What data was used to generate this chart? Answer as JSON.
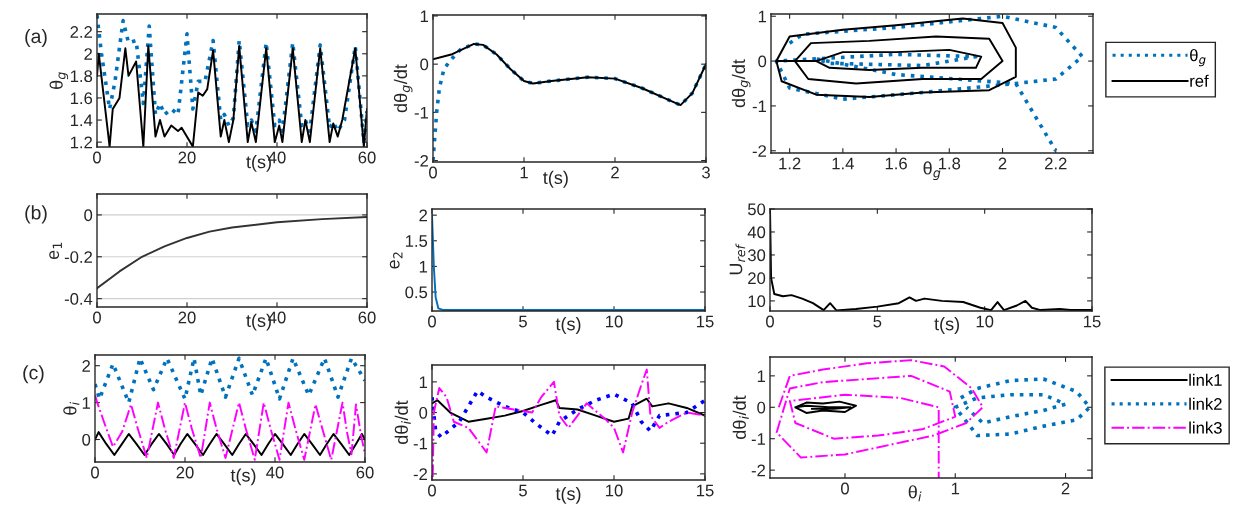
{
  "chart_data": [
    {
      "type": "line",
      "xlabel": "t(s)",
      "ylabel": "θ$_{g}$",
      "annotations": [
        "(a)"
      ],
      "xlim": [
        0,
        60
      ],
      "ylim": [
        1.156,
        2.36
      ],
      "xticks": [
        0,
        20,
        40,
        60
      ],
      "yticks": [
        1.2,
        1.4,
        1.6,
        1.8,
        2,
        2.2
      ],
      "grid": false,
      "legend": false,
      "series": [
        {
          "color": "#0072bd",
          "line_style": "dotted",
          "x": [
            0,
            1,
            2.8,
            4,
            5.8,
            7,
            8.7,
            10.3,
            11.6,
            13,
            14,
            15,
            16.5,
            18,
            20,
            21.3,
            22.5,
            24,
            25.8,
            27.5,
            28.3,
            29.3,
            30.3,
            31.6,
            33.5,
            34.3,
            35.3,
            37.6,
            39.5,
            40.5,
            41.2,
            43.5,
            45.5,
            46.3,
            47.3,
            49.6,
            51.7,
            52.5,
            53.5,
            55,
            57.4,
            59.3,
            60
          ],
          "values": [
            2.35,
            2.0,
            1.5,
            1.75,
            2.3,
            2.1,
            2.12,
            1.55,
            2.25,
            1.45,
            1.55,
            1.45,
            1.5,
            1.45,
            2.18,
            1.5,
            1.75,
            1.75,
            2.12,
            1.4,
            1.45,
            1.35,
            1.42,
            2.12,
            1.35,
            1.4,
            1.3,
            2.1,
            1.35,
            1.4,
            1.3,
            2.1,
            1.35,
            1.4,
            1.3,
            2.08,
            1.33,
            1.38,
            1.3,
            1.4,
            2.07,
            1.2,
            1.48
          ]
        },
        {
          "color": "#000000",
          "line_style": "solid",
          "x": [
            0,
            0.4,
            2.8,
            3.5,
            5,
            6.3,
            7,
            8.7,
            10.3,
            11.4,
            13,
            14,
            15,
            16.5,
            18,
            18.8,
            21.3,
            22.5,
            23.5,
            24.5,
            25.8,
            27.5,
            28.3,
            29.3,
            30.3,
            31.6,
            33.5,
            34.3,
            35.3,
            37.6,
            39.5,
            40.5,
            41.2,
            43.5,
            45.5,
            46.3,
            47.3,
            49.6,
            51.7,
            52.5,
            53.5,
            54.5,
            57.4,
            59.3,
            60
          ],
          "values": [
            1.8,
            2.0,
            1.16,
            1.5,
            1.6,
            2.05,
            1.8,
            1.93,
            1.16,
            2.07,
            1.25,
            1.4,
            1.25,
            1.35,
            1.3,
            1.33,
            1.16,
            1.65,
            1.62,
            1.68,
            2.03,
            1.25,
            1.4,
            1.2,
            1.4,
            2.07,
            1.2,
            1.38,
            1.2,
            2.05,
            1.2,
            1.35,
            1.2,
            2.05,
            1.2,
            1.4,
            1.2,
            2.05,
            1.2,
            1.37,
            1.25,
            1.4,
            2.05,
            1.16,
            1.5
          ]
        }
      ]
    },
    {
      "type": "line",
      "xlabel": "t(s)",
      "ylabel": "dθ$_{g}$/dt",
      "xlim": [
        0,
        3
      ],
      "ylim": [
        -2.03,
        1.02
      ],
      "xticks": [
        0,
        1,
        2,
        3
      ],
      "yticks": [
        -2,
        -1,
        0,
        1
      ],
      "grid": false,
      "legend": false,
      "series": [
        {
          "color": "#0072bd",
          "line_style": "dotted",
          "x": [
            0,
            0.02,
            0.04,
            0.07,
            0.12,
            0.2,
            0.3,
            0.45,
            0.55,
            0.7,
            0.85,
            1.0,
            1.1,
            1.3,
            1.7,
            2.0,
            2.3,
            2.6,
            2.72,
            2.85,
            3.0
          ],
          "values": [
            -2.0,
            -1.5,
            -1.0,
            -0.5,
            -0.1,
            0.1,
            0.3,
            0.42,
            0.4,
            0.2,
            -0.1,
            -0.35,
            -0.4,
            -0.35,
            -0.27,
            -0.3,
            -0.5,
            -0.75,
            -0.85,
            -0.6,
            0.0
          ]
        },
        {
          "color": "#000000",
          "line_style": "solid",
          "x": [
            0,
            0.2,
            0.45,
            0.55,
            0.7,
            0.85,
            1.0,
            1.1,
            1.3,
            1.7,
            2.0,
            2.3,
            2.6,
            2.72,
            2.85,
            3.0
          ],
          "values": [
            0.1,
            0.2,
            0.42,
            0.4,
            0.2,
            -0.1,
            -0.35,
            -0.4,
            -0.35,
            -0.27,
            -0.3,
            -0.5,
            -0.75,
            -0.85,
            -0.6,
            0.0
          ]
        }
      ]
    },
    {
      "type": "line",
      "xlabel": "θ$_{g}$",
      "ylabel": "dθ$_{g}$/dt",
      "xlim": [
        1.13,
        2.34
      ],
      "ylim": [
        -2.05,
        1.05
      ],
      "xticks": [
        1.2,
        1.4,
        1.6,
        1.8,
        2,
        2.2
      ],
      "yticks": [
        -2,
        -1,
        0,
        1
      ],
      "grid": false,
      "legend": "right",
      "series": [
        {
          "name": "θ$_{g}$",
          "color": "#0072bd",
          "line_style": "dotted",
          "x": [
            1.2,
            1.25,
            1.6,
            2.0,
            2.2,
            2.3,
            2.2,
            2.05,
            1.7,
            1.4,
            1.2,
            1.15,
            1.3,
            1.6,
            1.9,
            1.7,
            1.35,
            1.3,
            1.6,
            2.05,
            2.12,
            2.2
          ],
          "values": [
            0.4,
            0.6,
            0.75,
            1.0,
            0.75,
            0.1,
            -0.4,
            -0.5,
            -0.7,
            -0.85,
            -0.6,
            0,
            0.05,
            0.15,
            0.1,
            -0.1,
            -0.05,
            0.05,
            -0.3,
            -0.5,
            -1.2,
            -2.0
          ]
        },
        {
          "name": "ref",
          "color": "#000000",
          "line_style": "solid",
          "x": [
            1.15,
            1.2,
            1.4,
            1.6,
            1.85,
            2.0,
            2.05,
            2.05,
            1.95,
            1.7,
            1.5,
            1.3,
            1.17,
            1.15,
            1.22,
            1.28,
            1.5,
            1.75,
            1.95,
            2.0,
            1.92,
            1.7,
            1.45,
            1.27,
            1.22,
            1.3,
            1.4,
            1.6,
            1.8,
            1.92,
            1.9,
            1.7,
            1.5,
            1.35,
            1.3
          ],
          "values": [
            0,
            0.55,
            0.7,
            0.8,
            0.95,
            0.85,
            0.3,
            -0.35,
            -0.65,
            -0.7,
            -0.8,
            -0.75,
            -0.45,
            0,
            0,
            0.4,
            0.45,
            0.55,
            0.5,
            0,
            -0.4,
            -0.4,
            -0.5,
            -0.4,
            0,
            0,
            0.2,
            0.2,
            0.25,
            0.1,
            -0.15,
            -0.15,
            -0.2,
            -0.15,
            0
          ]
        }
      ]
    },
    {
      "type": "line",
      "xlabel": "t(s)",
      "ylabel": "e$_{1}$",
      "annotations": [
        "(b)"
      ],
      "xlim": [
        0,
        60
      ],
      "ylim": [
        -0.44,
        0.1
      ],
      "xticks": [
        0,
        20,
        40,
        60
      ],
      "yticks": [
        -0.4,
        -0.2,
        0
      ],
      "grid": "y",
      "legend": false,
      "series": [
        {
          "color": "#333333",
          "line_style": "solid",
          "x": [
            0,
            5,
            10,
            15,
            20,
            25,
            30,
            40,
            50,
            60
          ],
          "values": [
            -0.35,
            -0.27,
            -0.2,
            -0.15,
            -0.11,
            -0.08,
            -0.06,
            -0.035,
            -0.02,
            -0.01
          ]
        }
      ]
    },
    {
      "type": "line",
      "xlabel": "t(s)",
      "ylabel": "e$_{2}$",
      "xlim": [
        0,
        15
      ],
      "ylim": [
        0.13,
        2.12
      ],
      "xticks": [
        0,
        5,
        10,
        15
      ],
      "yticks": [
        0.5,
        1,
        1.5,
        2
      ],
      "grid": false,
      "legend": false,
      "series": [
        {
          "color": "#0072bd",
          "line_style": "solid",
          "x": [
            0,
            0.1,
            0.2,
            0.35,
            0.6,
            15
          ],
          "values": [
            2.0,
            1.0,
            0.4,
            0.18,
            0.15,
            0.15
          ]
        }
      ]
    },
    {
      "type": "line",
      "xlabel": "t(s)",
      "ylabel": "U$_{ref}$",
      "xlim": [
        0,
        15
      ],
      "ylim": [
        5.6,
        50
      ],
      "xticks": [
        0,
        5,
        10,
        15
      ],
      "yticks": [
        10,
        20,
        30,
        40,
        50
      ],
      "grid": false,
      "legend": false,
      "series": [
        {
          "color": "#000000",
          "line_style": "solid",
          "x": [
            0,
            0.05,
            0.2,
            0.6,
            1,
            1.5,
            2,
            2.5,
            2.8,
            3.1,
            4,
            5,
            6,
            6.5,
            6.8,
            7.2,
            8,
            9,
            9.8,
            10.3,
            10.6,
            10.9,
            11.5,
            11.9,
            12.2,
            12.6,
            13.5,
            14,
            15
          ],
          "values": [
            50,
            20,
            13,
            12,
            12.5,
            11,
            9,
            6,
            9,
            5.8,
            6.5,
            7.5,
            9,
            11.5,
            10,
            11,
            10,
            9.5,
            7,
            6,
            9.5,
            6,
            8,
            10,
            7,
            6,
            6.5,
            6,
            6
          ]
        }
      ]
    },
    {
      "type": "line",
      "xlabel": "t(s)",
      "ylabel": "θ$_{i}$",
      "annotations": [
        "(c)"
      ],
      "xlim": [
        0,
        60
      ],
      "ylim": [
        -0.61,
        2.29
      ],
      "xticks": [
        0,
        20,
        40,
        60
      ],
      "yticks": [
        0,
        1,
        2
      ],
      "grid": false,
      "legend": false,
      "series": [
        {
          "color": "#000000",
          "line_style": "solid",
          "x": [
            0,
            0.8,
            2.5,
            4.3,
            6,
            7.5,
            9.2,
            11,
            12.6,
            14.2,
            15.9,
            17.6,
            19,
            20.5,
            22.2,
            24,
            25.5,
            27,
            28.7,
            30.5,
            32,
            33.5,
            35.2,
            37,
            38.5,
            40,
            41.7,
            43.5,
            45,
            46.5,
            48.2,
            50,
            51.5,
            53,
            54.7,
            56.5,
            58,
            59.3,
            60
          ],
          "values": [
            0.0,
            0.2,
            -0.12,
            -0.42,
            -0.12,
            0.15,
            -0.12,
            -0.42,
            -0.12,
            0.15,
            -0.12,
            -0.42,
            -0.12,
            0.15,
            -0.12,
            -0.42,
            -0.12,
            0.15,
            -0.12,
            -0.42,
            -0.12,
            0.15,
            -0.12,
            -0.42,
            -0.12,
            0.15,
            -0.12,
            -0.42,
            -0.12,
            0.15,
            -0.12,
            -0.42,
            -0.12,
            0.15,
            -0.12,
            -0.42,
            -0.12,
            0.15,
            0.0
          ]
        },
        {
          "color": "#0072bd",
          "line_style": "dotted",
          "x": [
            0,
            1,
            4,
            7.5,
            10,
            13,
            16,
            20,
            22,
            23.5,
            26,
            29,
            32,
            35,
            38,
            41,
            44,
            47.5,
            51,
            54,
            57,
            60
          ],
          "values": [
            1.5,
            1.1,
            2.05,
            1.0,
            2.2,
            1.35,
            2.2,
            1.1,
            2.2,
            1.2,
            2.2,
            1.15,
            2.2,
            1.2,
            2.2,
            1.1,
            2.2,
            1.2,
            2.2,
            1.15,
            2.2,
            1.6
          ]
        },
        {
          "color": "#ff00ff",
          "line_style": "dashdot",
          "x": [
            0,
            0.5,
            2.5,
            4,
            6,
            8,
            9.5,
            11.5,
            14,
            15.5,
            17.5,
            20,
            21.5,
            23.5,
            25.5,
            27,
            29,
            32,
            33.5,
            35.5,
            37.5,
            39,
            41,
            43,
            44.5,
            46.5,
            49,
            50.5,
            52.5,
            55,
            56,
            57,
            58,
            59,
            60
          ],
          "values": [
            1.2,
            1.0,
            0.3,
            -0.2,
            0.2,
            0.95,
            0.3,
            -0.5,
            1.0,
            0.3,
            -0.5,
            1.0,
            0.3,
            -0.5,
            1.0,
            0.3,
            -0.5,
            1.0,
            0.3,
            -0.55,
            1.0,
            0.3,
            -0.55,
            1.0,
            0.3,
            -0.55,
            0.95,
            0.3,
            -0.55,
            1.0,
            0.2,
            -0.4,
            0.95,
            0.2,
            -0.4
          ]
        }
      ]
    },
    {
      "type": "line",
      "xlabel": "t(s)",
      "ylabel": "dθ$_{i}$/dt",
      "xlim": [
        0,
        15
      ],
      "ylim": [
        -2.2,
        1.55
      ],
      "xticks": [
        0,
        5,
        10,
        15
      ],
      "yticks": [
        -2,
        -1,
        0,
        1
      ],
      "grid": false,
      "legend": false,
      "series": [
        {
          "color": "#000000",
          "line_style": "solid",
          "x": [
            0,
            0.3,
            1,
            2,
            3,
            4,
            5,
            6,
            6.8,
            7,
            8,
            9,
            10,
            10.8,
            11,
            11.8,
            12.1,
            13,
            14,
            15
          ],
          "values": [
            0.3,
            0.4,
            0,
            -0.3,
            -0.2,
            -0.1,
            0.05,
            0.25,
            0.4,
            0.15,
            0.1,
            -0.1,
            -0.3,
            -0.2,
            0.2,
            0.45,
            0.2,
            0.3,
            0.15,
            -0.1
          ]
        },
        {
          "color": "#0000ff",
          "line_style": "dotted",
          "x": [
            0,
            0.2,
            0.5,
            1.5,
            2.5,
            3,
            4,
            5,
            5.8,
            6.6,
            7,
            8,
            9,
            10,
            11,
            11.5,
            12,
            12.5,
            14,
            15
          ],
          "values": [
            0.5,
            -0.6,
            -0.8,
            -0.3,
            0.7,
            0.5,
            0.2,
            0,
            -0.4,
            -0.75,
            -0.3,
            0.1,
            0.4,
            0.6,
            0.3,
            -0.3,
            -0.6,
            -0.1,
            0.0,
            0.4
          ]
        },
        {
          "color": "#ff00ff",
          "line_style": "dashdot",
          "x": [
            0.04,
            0.1,
            0.4,
            0.8,
            1.2,
            2,
            3,
            3.5,
            4.5,
            5.5,
            6,
            6.7,
            7,
            7.5,
            8.5,
            9.5,
            10,
            10.5,
            11,
            11.5,
            11.8,
            12,
            12.5,
            13,
            14,
            15
          ],
          "values": [
            -2.1,
            0,
            0.8,
            0.5,
            -0.3,
            -0.5,
            -1.3,
            0.2,
            0.1,
            0,
            0.5,
            1.0,
            -0.1,
            -0.5,
            0.3,
            -0.2,
            -0.5,
            -1.3,
            0,
            0.9,
            1.4,
            -0.1,
            -0.5,
            -0.3,
            0.0,
            -0.1
          ]
        }
      ]
    },
    {
      "type": "line",
      "xlabel": "θ$_{i}$",
      "ylabel": "dθ$_{i}$/dt",
      "xlim": [
        -0.68,
        2.24
      ],
      "ylim": [
        -2.25,
        1.6
      ],
      "xticks": [
        0,
        1,
        2
      ],
      "yticks": [
        -2,
        -1,
        0,
        1
      ],
      "grid": false,
      "legend": "right",
      "series": [
        {
          "name": "link1",
          "color": "#000000",
          "line_style": "solid",
          "x": [
            -0.45,
            -0.35,
            -0.2,
            -0.05,
            0.1,
            0.0,
            -0.2,
            -0.35,
            -0.45,
            -0.35,
            -0.15,
            0.05,
            -0.1,
            -0.3
          ],
          "values": [
            0,
            0.15,
            0.12,
            0.18,
            0.05,
            -0.15,
            -0.1,
            -0.18,
            0,
            0.05,
            0.0,
            0.0,
            -0.05,
            -0.05
          ]
        },
        {
          "name": "link2",
          "color": "#0072bd",
          "line_style": "dotted",
          "x": [
            1.05,
            1.2,
            1.5,
            1.8,
            2.1,
            2.22,
            2.1,
            1.8,
            1.5,
            1.2,
            1.0,
            1.2,
            1.5,
            1.8,
            2.0,
            1.8,
            1.5,
            1.25,
            1.1
          ],
          "values": [
            0.3,
            0.6,
            0.85,
            0.9,
            0.5,
            0,
            -0.4,
            -0.6,
            -0.85,
            -0.9,
            0,
            0.3,
            0.4,
            0.4,
            0.1,
            -0.1,
            -0.3,
            -0.5,
            0
          ]
        },
        {
          "name": "link3",
          "color": "#ff00ff",
          "line_style": "dashdot",
          "x": [
            -0.6,
            -0.5,
            -0.2,
            0.2,
            0.6,
            0.9,
            1.15,
            1.25,
            1.1,
            0.8,
            0.4,
            0.0,
            -0.4,
            -0.62,
            -0.5,
            -0.2,
            0.2,
            0.6,
            0.95,
            1.0,
            0.7,
            0.3,
            -0.1,
            -0.45,
            -0.5,
            0.0,
            0.5,
            0.85,
            0.85,
            0.85
          ],
          "values": [
            0,
            1.0,
            1.2,
            1.4,
            1.5,
            1.3,
            0.6,
            0,
            -0.5,
            -0.9,
            -1.2,
            -1.5,
            -1.6,
            -0.8,
            0.6,
            0.8,
            0.9,
            1.0,
            0.5,
            -0.3,
            -0.7,
            -0.9,
            -1.0,
            -0.5,
            0.2,
            0.4,
            0.3,
            0.0,
            -1.0,
            -2.25
          ]
        }
      ]
    }
  ]
}
